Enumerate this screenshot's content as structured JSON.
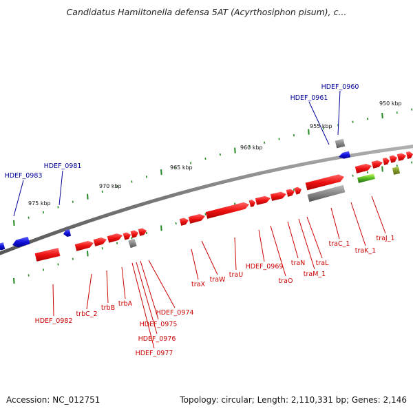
{
  "title": "Candidatus Hamiltonella defensa 5AT (Acyrthosiphon pisum), c...",
  "footer": {
    "accession": "Accession: NC_012751",
    "summary": "Topology: circular; Length: 2,110,331 bp; Genes: 2,146"
  },
  "colors": {
    "backbone": "#808080",
    "forward_gene": "#ee1111",
    "reverse_gene": "#1111dd",
    "pseudo_gene": "#9a9a9a",
    "rna_gene": "#44bb22",
    "tick": "#228822",
    "red_label": "#cc0000",
    "blue_label": "#000099"
  },
  "scale_ticks": [
    {
      "label": "950 kbp"
    },
    {
      "label": "955 kbp"
    },
    {
      "label": "960 kbp"
    },
    {
      "label": "965 kbp"
    },
    {
      "label": "970 kbp"
    },
    {
      "label": "975 kbp"
    }
  ],
  "gene_labels": [
    {
      "text": "HDEF_0960",
      "strand": "reverse"
    },
    {
      "text": "HDEF_0961",
      "strand": "reverse"
    },
    {
      "text": "HDEF_0981",
      "strand": "reverse"
    },
    {
      "text": "HDEF_0983",
      "strand": "reverse"
    },
    {
      "text": "traJ_1",
      "strand": "forward"
    },
    {
      "text": "traK_1",
      "strand": "forward"
    },
    {
      "text": "traC_1",
      "strand": "forward"
    },
    {
      "text": "traL",
      "strand": "forward"
    },
    {
      "text": "traM_1",
      "strand": "forward"
    },
    {
      "text": "traN",
      "strand": "forward"
    },
    {
      "text": "traO",
      "strand": "forward"
    },
    {
      "text": "HDEF_0969",
      "strand": "forward"
    },
    {
      "text": "traU",
      "strand": "forward"
    },
    {
      "text": "traW",
      "strand": "forward"
    },
    {
      "text": "traX",
      "strand": "forward"
    },
    {
      "text": "HDEF_0974",
      "strand": "forward"
    },
    {
      "text": "HDEF_0975",
      "strand": "forward"
    },
    {
      "text": "HDEF_0976",
      "strand": "forward"
    },
    {
      "text": "HDEF_0977",
      "strand": "forward"
    },
    {
      "text": "trbA",
      "strand": "forward"
    },
    {
      "text": "trbB",
      "strand": "forward"
    },
    {
      "text": "trbC_2",
      "strand": "forward"
    },
    {
      "text": "HDEF_0982",
      "strand": "forward"
    }
  ]
}
